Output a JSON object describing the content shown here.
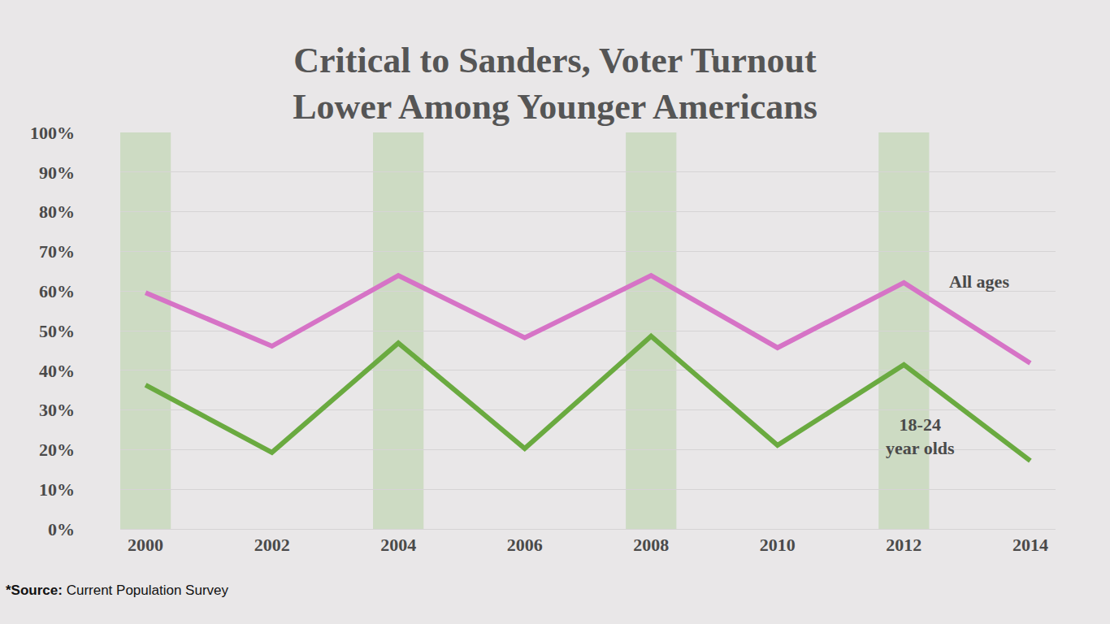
{
  "chart_data": {
    "type": "line",
    "title": "Critical to Sanders, Voter Turnout\nLower Among Younger Americans",
    "x": [
      2000,
      2002,
      2004,
      2006,
      2008,
      2010,
      2012,
      2014
    ],
    "xlim": [
      1999.6,
      2014.4
    ],
    "xticks": [
      2000,
      2002,
      2004,
      2006,
      2008,
      2010,
      2012,
      2014
    ],
    "ylim": [
      0,
      100
    ],
    "yticks": [
      {
        "value": 0,
        "label": "0%"
      },
      {
        "value": 10,
        "label": "10%"
      },
      {
        "value": 20,
        "label": "20%"
      },
      {
        "value": 30,
        "label": "30%"
      },
      {
        "value": 40,
        "label": "40%"
      },
      {
        "value": 50,
        "label": "50%"
      },
      {
        "value": 60,
        "label": "60%"
      },
      {
        "value": 70,
        "label": "70%"
      },
      {
        "value": 80,
        "label": "80%"
      },
      {
        "value": 90,
        "label": "90%"
      },
      {
        "value": 100,
        "label": "100%"
      }
    ],
    "grid": true,
    "series": [
      {
        "name": "All ages",
        "color": "#d673c6",
        "values": [
          59.6,
          46.1,
          63.9,
          48.2,
          63.9,
          45.7,
          62.1,
          41.8
        ]
      },
      {
        "name": "18-24\nyear olds",
        "color": "#6aaa40",
        "values": [
          36.3,
          19.3,
          46.9,
          20.3,
          48.6,
          21.1,
          41.4,
          17.2
        ]
      }
    ],
    "source": "*Source: Current Population Survey"
  }
}
